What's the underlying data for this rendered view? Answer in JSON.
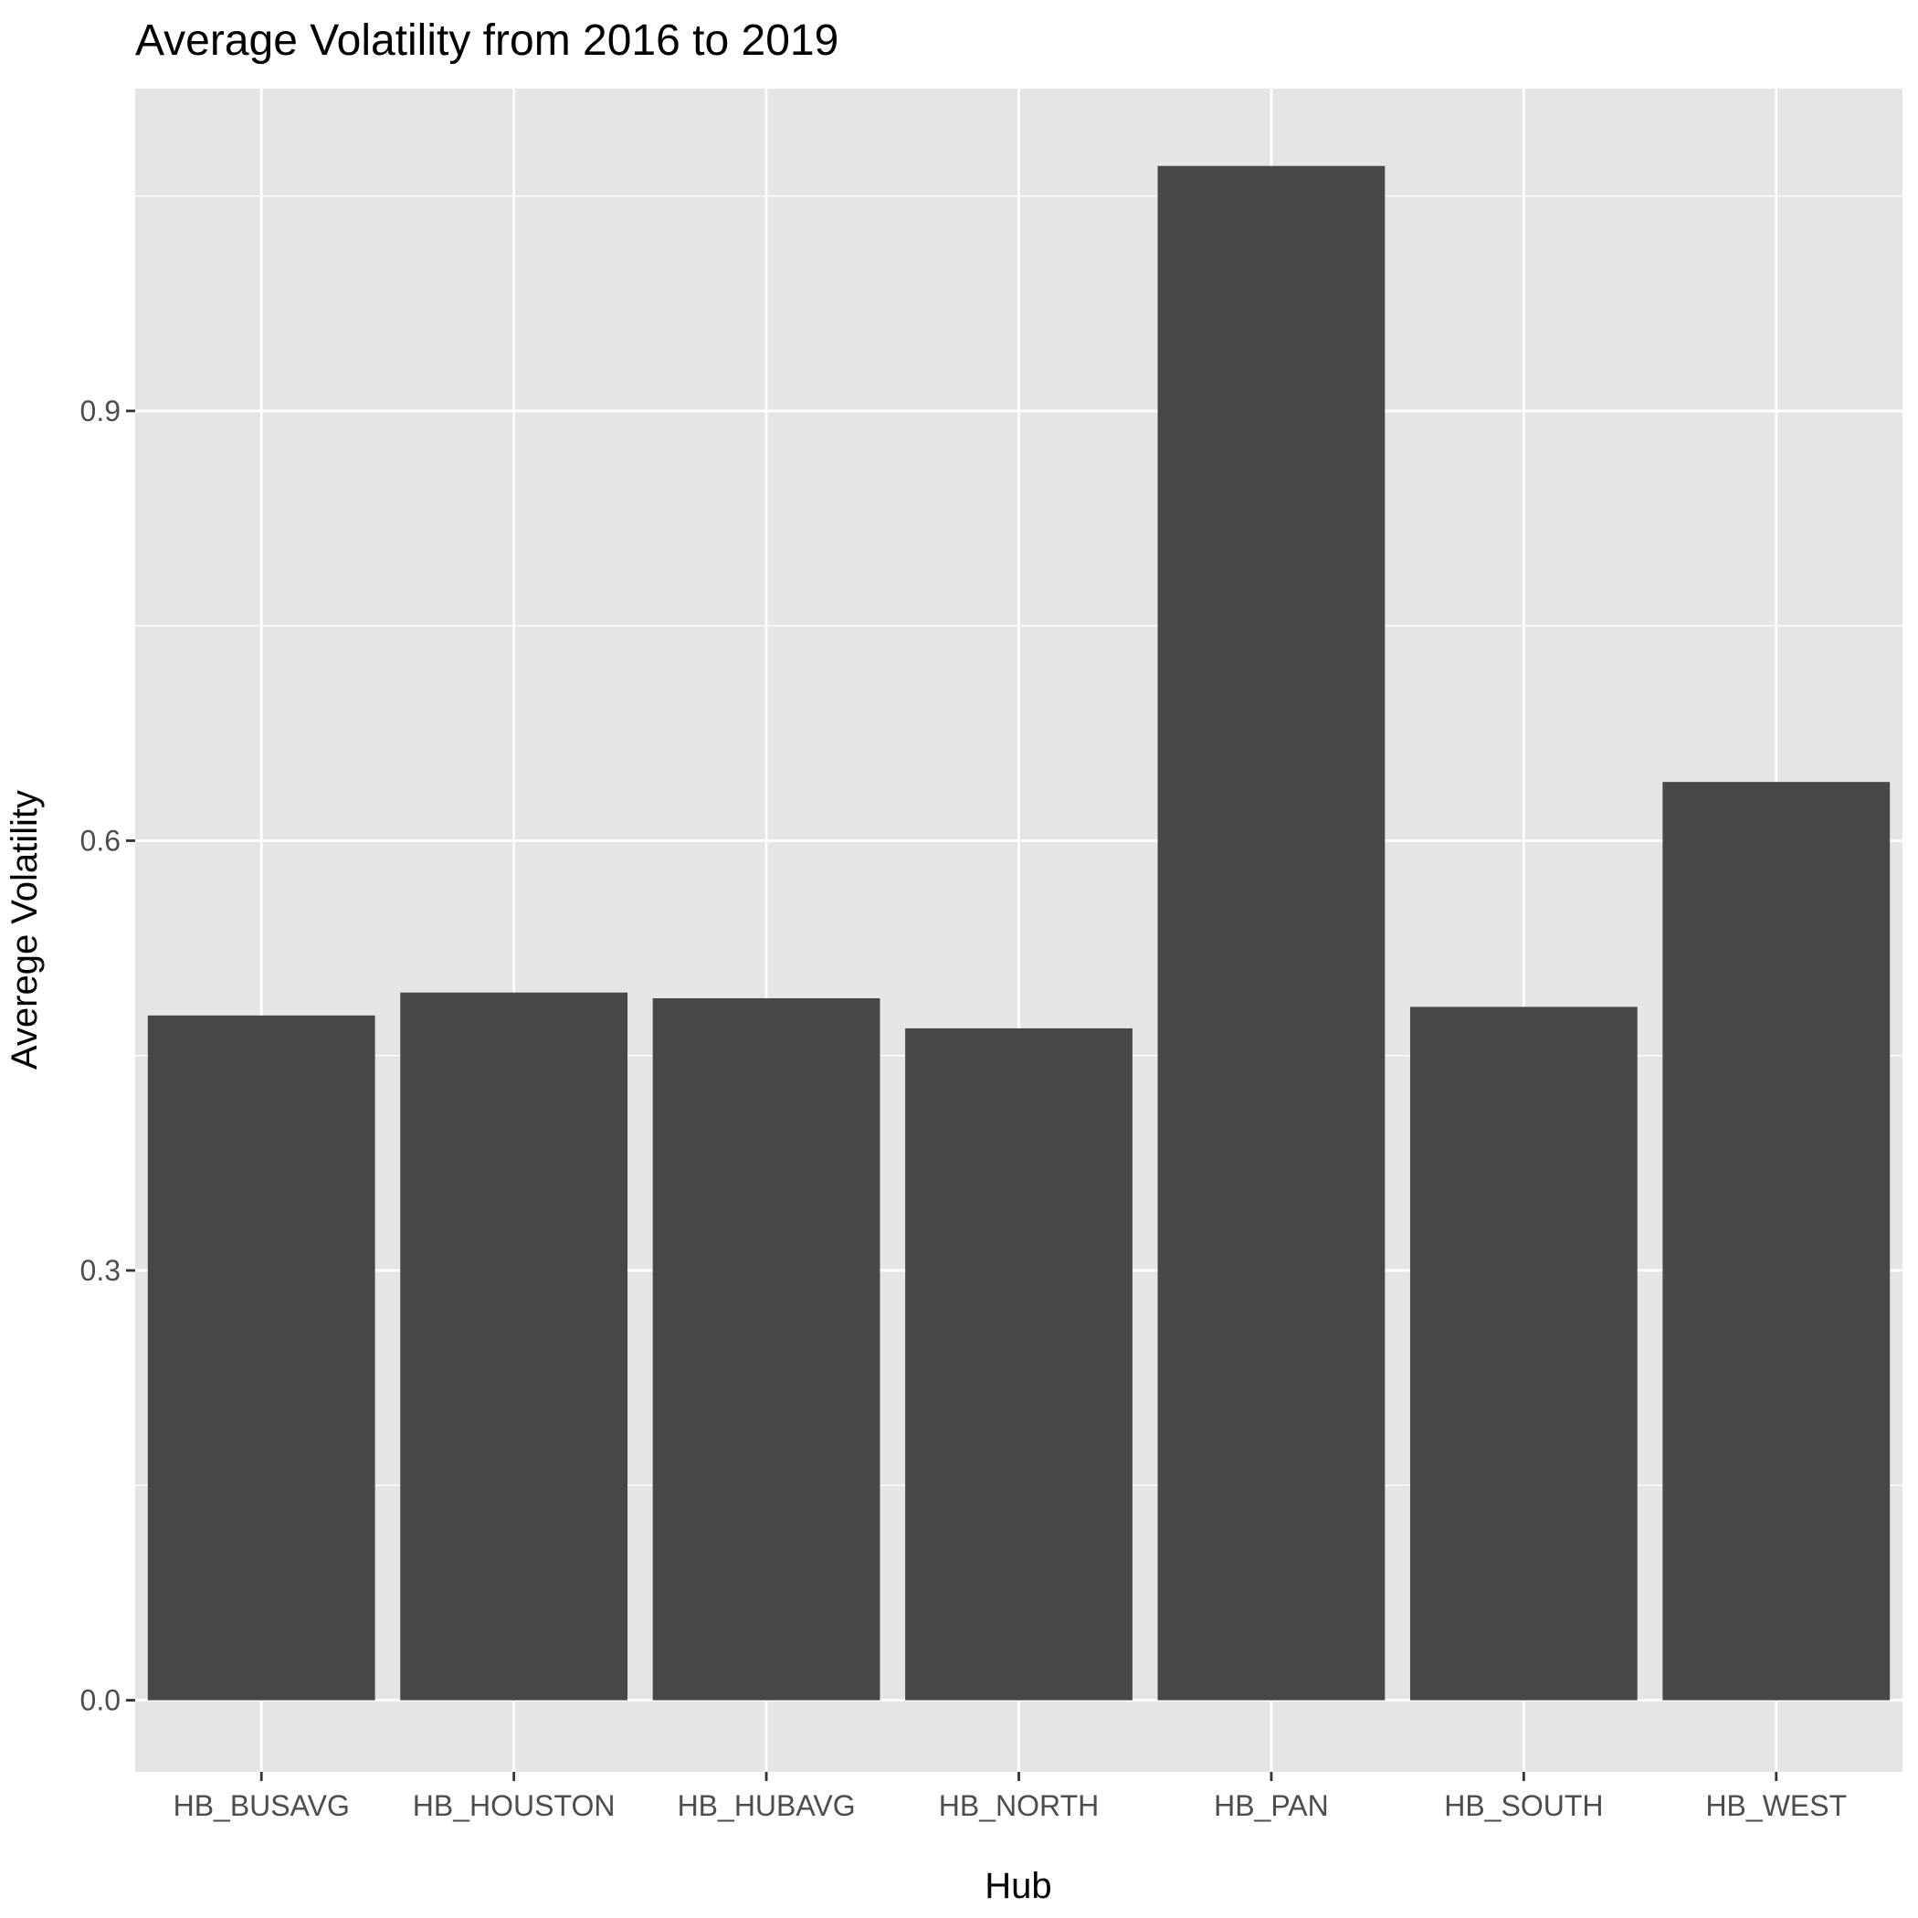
{
  "chart_data": {
    "type": "bar",
    "title": "Average Volatility from 2016 to 2019",
    "xlabel": "Hub",
    "ylabel": "Averege Volatility",
    "categories": [
      "HB_BUSAVG",
      "HB_HOUSTON",
      "HB_HUBAVG",
      "HB_NORTH",
      "HB_PAN",
      "HB_SOUTH",
      "HB_WEST"
    ],
    "values": [
      0.478,
      0.494,
      0.49,
      0.469,
      1.071,
      0.484,
      0.641
    ],
    "ylim": [
      -0.05,
      1.125
    ],
    "yticks": [
      0.0,
      0.3,
      0.6,
      0.9
    ],
    "ytick_labels": [
      "0.0",
      "0.3",
      "0.6",
      "0.9"
    ],
    "grid": true,
    "legend": "none",
    "colors": {
      "bar": "#474747",
      "panel": "#e5e5e5",
      "grid": "#ffffff",
      "tick_text": "#4d4d4d",
      "tick_mark": "#333333"
    }
  }
}
